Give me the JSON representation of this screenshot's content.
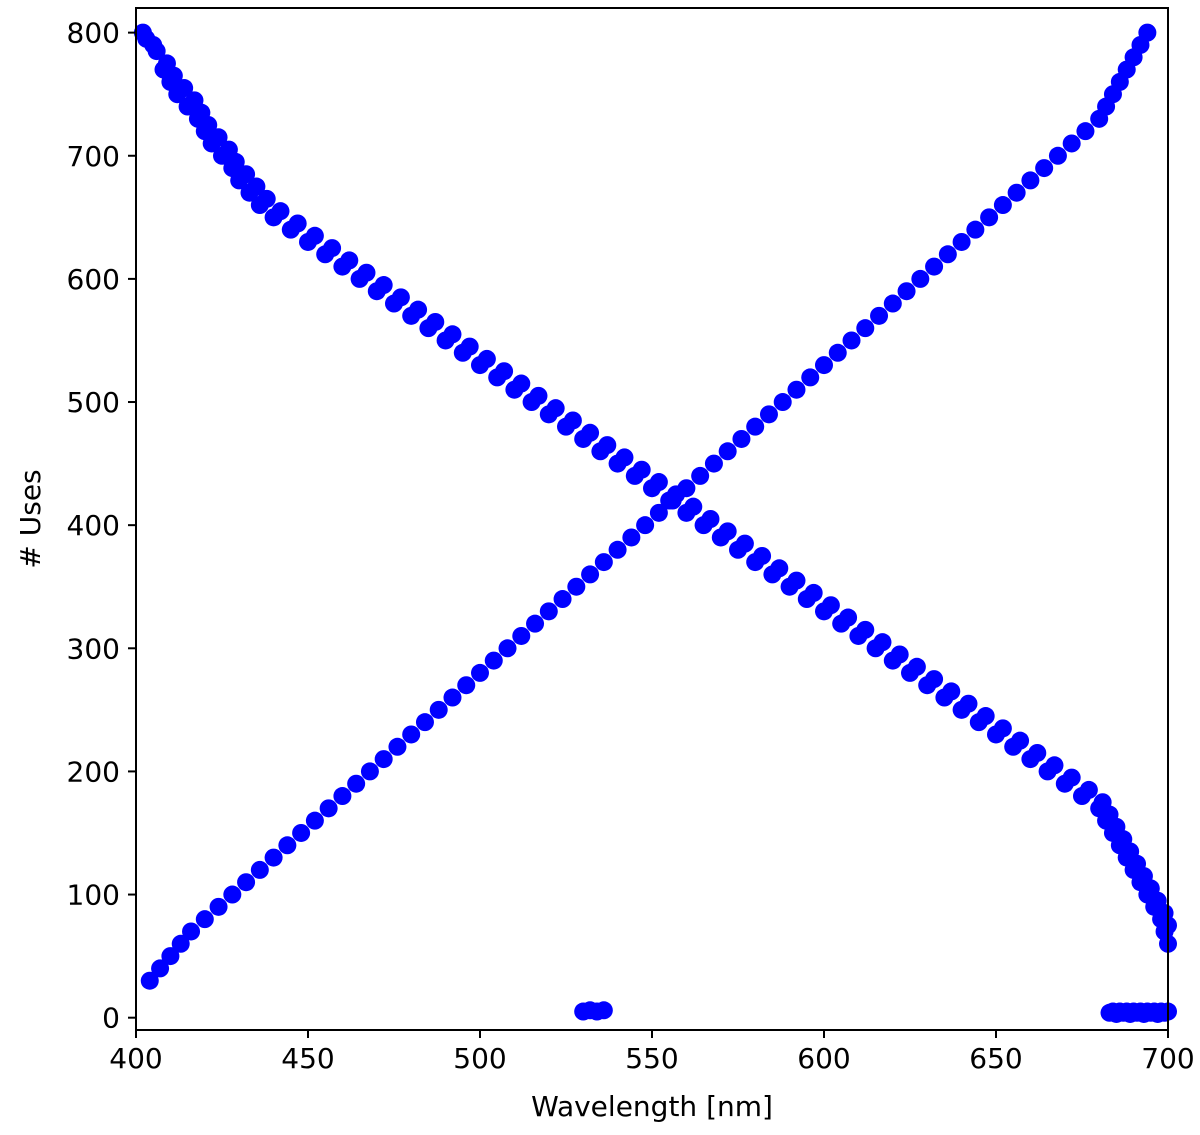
{
  "chart_data": {
    "type": "scatter",
    "title": "",
    "xlabel": "Wavelength [nm]",
    "ylabel": "# Uses",
    "xlim": [
      400,
      700
    ],
    "ylim": [
      -10,
      820
    ],
    "x_ticks": [
      400,
      450,
      500,
      550,
      600,
      650,
      700
    ],
    "y_ticks": [
      0,
      100,
      200,
      300,
      400,
      500,
      600,
      700,
      800
    ],
    "x_tick_labels": [
      "400",
      "450",
      "500",
      "550",
      "600",
      "650",
      "700"
    ],
    "y_tick_labels": [
      "0",
      "100",
      "200",
      "300",
      "400",
      "500",
      "600",
      "700",
      "800"
    ],
    "grid": false,
    "legend": "none",
    "marker_color": "#0000ff",
    "series": [
      {
        "values_description_note": "",
        "points": [
          [
            402,
            800
          ],
          [
            405,
            790
          ],
          [
            408,
            770
          ],
          [
            410,
            760
          ],
          [
            412,
            750
          ],
          [
            415,
            740
          ],
          [
            418,
            730
          ],
          [
            420,
            720
          ],
          [
            422,
            710
          ],
          [
            425,
            700
          ],
          [
            428,
            690
          ],
          [
            430,
            680
          ],
          [
            433,
            670
          ],
          [
            436,
            660
          ],
          [
            440,
            650
          ],
          [
            445,
            640
          ],
          [
            450,
            630
          ],
          [
            455,
            620
          ],
          [
            460,
            610
          ],
          [
            465,
            600
          ],
          [
            470,
            590
          ],
          [
            475,
            580
          ],
          [
            480,
            570
          ],
          [
            485,
            560
          ],
          [
            490,
            550
          ],
          [
            495,
            540
          ],
          [
            500,
            530
          ],
          [
            505,
            520
          ],
          [
            510,
            510
          ],
          [
            515,
            500
          ],
          [
            520,
            490
          ],
          [
            525,
            480
          ],
          [
            530,
            470
          ],
          [
            535,
            460
          ],
          [
            540,
            450
          ],
          [
            545,
            440
          ],
          [
            550,
            430
          ],
          [
            555,
            420
          ],
          [
            560,
            410
          ],
          [
            565,
            400
          ],
          [
            570,
            390
          ],
          [
            575,
            380
          ],
          [
            580,
            370
          ],
          [
            585,
            360
          ],
          [
            590,
            350
          ],
          [
            595,
            340
          ],
          [
            600,
            330
          ],
          [
            605,
            320
          ],
          [
            610,
            310
          ],
          [
            615,
            300
          ],
          [
            620,
            290
          ],
          [
            625,
            280
          ],
          [
            630,
            270
          ],
          [
            635,
            260
          ],
          [
            640,
            250
          ],
          [
            645,
            240
          ],
          [
            650,
            230
          ],
          [
            655,
            220
          ],
          [
            660,
            210
          ],
          [
            665,
            200
          ],
          [
            670,
            190
          ],
          [
            675,
            180
          ],
          [
            680,
            170
          ],
          [
            682,
            160
          ],
          [
            684,
            150
          ],
          [
            686,
            140
          ],
          [
            688,
            130
          ],
          [
            690,
            120
          ],
          [
            692,
            110
          ],
          [
            694,
            100
          ],
          [
            696,
            90
          ],
          [
            698,
            80
          ],
          [
            699,
            70
          ],
          [
            700,
            60
          ],
          [
            403,
            795
          ],
          [
            406,
            785
          ],
          [
            409,
            775
          ],
          [
            411,
            765
          ],
          [
            414,
            755
          ],
          [
            417,
            745
          ],
          [
            419,
            735
          ],
          [
            421,
            725
          ],
          [
            424,
            715
          ],
          [
            427,
            705
          ],
          [
            429,
            695
          ],
          [
            432,
            685
          ],
          [
            435,
            675
          ],
          [
            438,
            665
          ],
          [
            442,
            655
          ],
          [
            447,
            645
          ],
          [
            452,
            635
          ],
          [
            457,
            625
          ],
          [
            462,
            615
          ],
          [
            467,
            605
          ],
          [
            472,
            595
          ],
          [
            477,
            585
          ],
          [
            482,
            575
          ],
          [
            487,
            565
          ],
          [
            492,
            555
          ],
          [
            497,
            545
          ],
          [
            502,
            535
          ],
          [
            507,
            525
          ],
          [
            512,
            515
          ],
          [
            517,
            505
          ],
          [
            522,
            495
          ],
          [
            527,
            485
          ],
          [
            532,
            475
          ],
          [
            537,
            465
          ],
          [
            542,
            455
          ],
          [
            547,
            445
          ],
          [
            552,
            435
          ],
          [
            557,
            425
          ],
          [
            562,
            415
          ],
          [
            567,
            405
          ],
          [
            572,
            395
          ],
          [
            577,
            385
          ],
          [
            582,
            375
          ],
          [
            587,
            365
          ],
          [
            592,
            355
          ],
          [
            597,
            345
          ],
          [
            602,
            335
          ],
          [
            607,
            325
          ],
          [
            612,
            315
          ],
          [
            617,
            305
          ],
          [
            622,
            295
          ],
          [
            627,
            285
          ],
          [
            632,
            275
          ],
          [
            637,
            265
          ],
          [
            642,
            255
          ],
          [
            647,
            245
          ],
          [
            652,
            235
          ],
          [
            657,
            225
          ],
          [
            662,
            215
          ],
          [
            667,
            205
          ],
          [
            672,
            195
          ],
          [
            677,
            185
          ],
          [
            681,
            175
          ],
          [
            683,
            165
          ],
          [
            685,
            155
          ],
          [
            687,
            145
          ],
          [
            689,
            135
          ],
          [
            691,
            125
          ],
          [
            693,
            115
          ],
          [
            695,
            105
          ],
          [
            697,
            95
          ],
          [
            699,
            85
          ],
          [
            700,
            75
          ],
          [
            404,
            30
          ],
          [
            407,
            40
          ],
          [
            410,
            50
          ],
          [
            413,
            60
          ],
          [
            416,
            70
          ],
          [
            420,
            80
          ],
          [
            424,
            90
          ],
          [
            428,
            100
          ],
          [
            432,
            110
          ],
          [
            436,
            120
          ],
          [
            440,
            130
          ],
          [
            444,
            140
          ],
          [
            448,
            150
          ],
          [
            452,
            160
          ],
          [
            456,
            170
          ],
          [
            460,
            180
          ],
          [
            464,
            190
          ],
          [
            468,
            200
          ],
          [
            472,
            210
          ],
          [
            476,
            220
          ],
          [
            480,
            230
          ],
          [
            484,
            240
          ],
          [
            488,
            250
          ],
          [
            492,
            260
          ],
          [
            496,
            270
          ],
          [
            500,
            280
          ],
          [
            504,
            290
          ],
          [
            508,
            300
          ],
          [
            512,
            310
          ],
          [
            516,
            320
          ],
          [
            520,
            330
          ],
          [
            524,
            340
          ],
          [
            528,
            350
          ],
          [
            532,
            360
          ],
          [
            536,
            370
          ],
          [
            540,
            380
          ],
          [
            544,
            390
          ],
          [
            548,
            400
          ],
          [
            552,
            410
          ],
          [
            556,
            420
          ],
          [
            560,
            430
          ],
          [
            564,
            440
          ],
          [
            568,
            450
          ],
          [
            572,
            460
          ],
          [
            576,
            470
          ],
          [
            580,
            480
          ],
          [
            584,
            490
          ],
          [
            588,
            500
          ],
          [
            592,
            510
          ],
          [
            596,
            520
          ],
          [
            600,
            530
          ],
          [
            604,
            540
          ],
          [
            608,
            550
          ],
          [
            612,
            560
          ],
          [
            616,
            570
          ],
          [
            620,
            580
          ],
          [
            624,
            590
          ],
          [
            628,
            600
          ],
          [
            632,
            610
          ],
          [
            636,
            620
          ],
          [
            640,
            630
          ],
          [
            644,
            640
          ],
          [
            648,
            650
          ],
          [
            652,
            660
          ],
          [
            656,
            670
          ],
          [
            660,
            680
          ],
          [
            664,
            690
          ],
          [
            668,
            700
          ],
          [
            672,
            710
          ],
          [
            676,
            720
          ],
          [
            680,
            730
          ],
          [
            682,
            740
          ],
          [
            684,
            750
          ],
          [
            686,
            760
          ],
          [
            688,
            770
          ],
          [
            690,
            780
          ],
          [
            692,
            790
          ],
          [
            694,
            800
          ],
          [
            684,
            5
          ],
          [
            686,
            5
          ],
          [
            688,
            5
          ],
          [
            690,
            5
          ],
          [
            692,
            5
          ],
          [
            694,
            5
          ],
          [
            696,
            5
          ],
          [
            698,
            5
          ],
          [
            700,
            5
          ],
          [
            683,
            4
          ],
          [
            685,
            3
          ],
          [
            687,
            4
          ],
          [
            689,
            3
          ],
          [
            691,
            4
          ],
          [
            693,
            3
          ],
          [
            695,
            4
          ],
          [
            697,
            3
          ],
          [
            699,
            4
          ],
          [
            530,
            5
          ],
          [
            532,
            6
          ],
          [
            534,
            5
          ],
          [
            536,
            6
          ]
        ]
      }
    ]
  }
}
